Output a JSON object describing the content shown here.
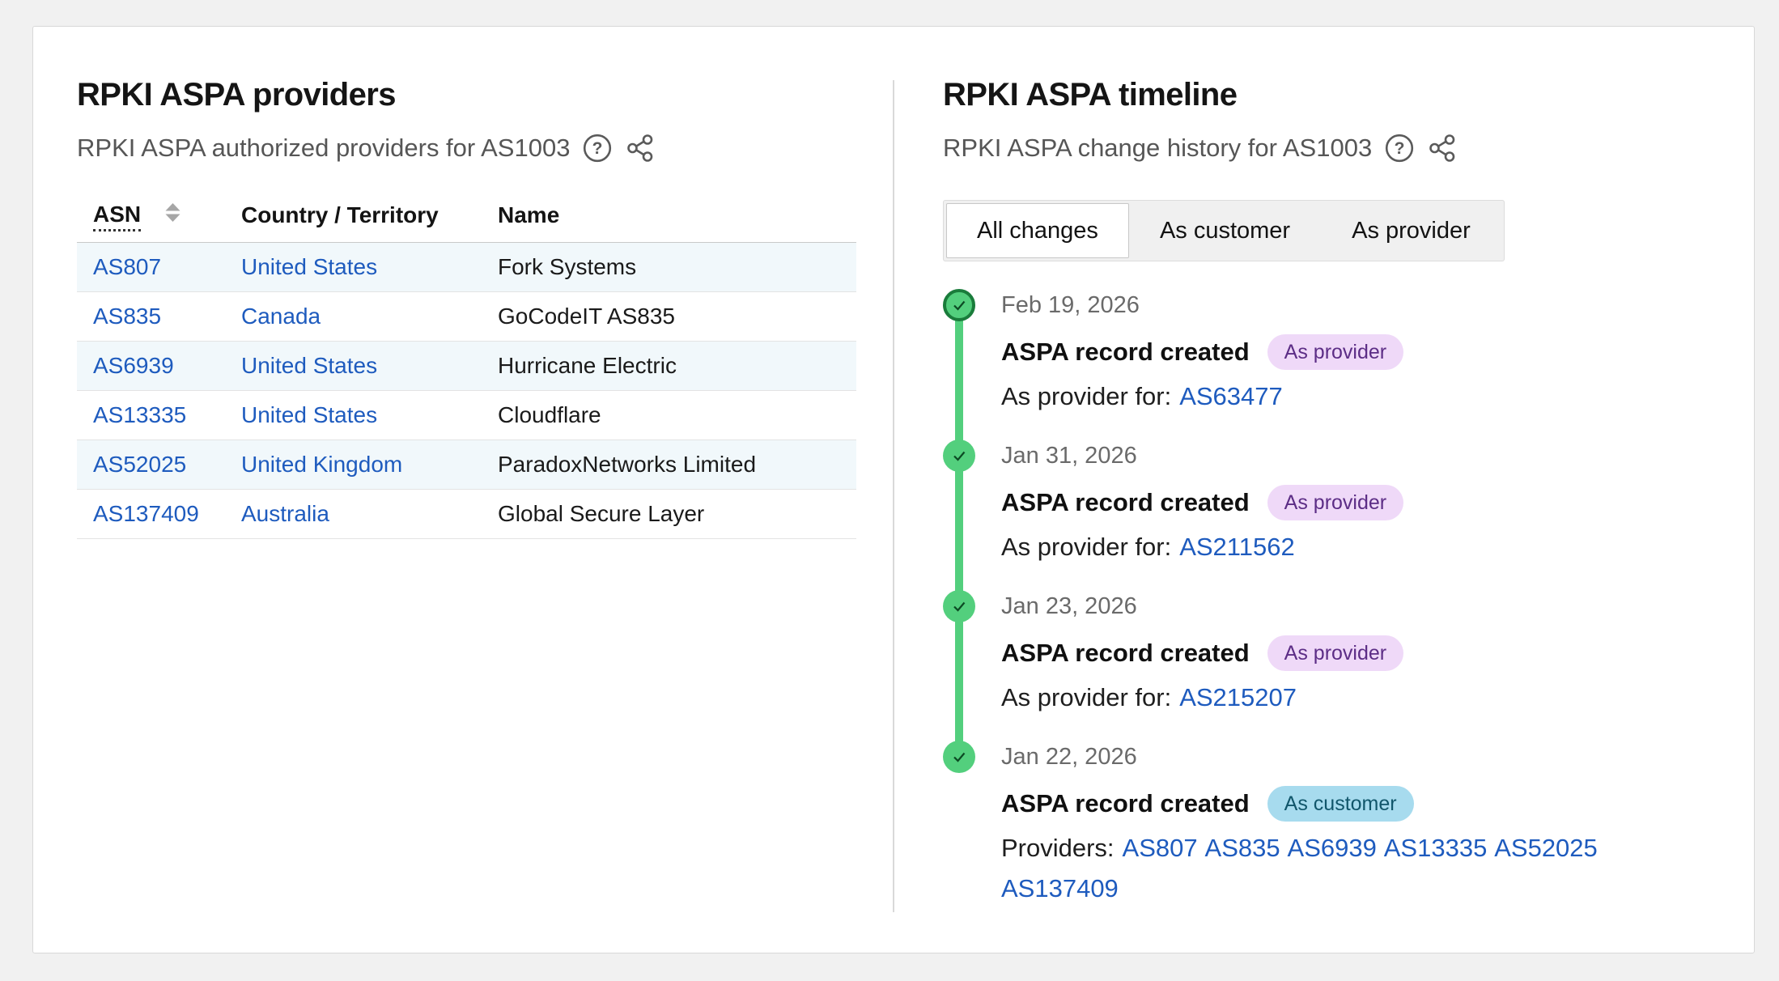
{
  "providers_panel": {
    "title": "RPKI ASPA providers",
    "subtitle": "RPKI ASPA authorized providers for AS1003",
    "table": {
      "columns": [
        "ASN",
        "Country / Territory",
        "Name"
      ],
      "rows": [
        {
          "asn": "AS807",
          "country": "United States",
          "name": "Fork Systems"
        },
        {
          "asn": "AS835",
          "country": "Canada",
          "name": "GoCodeIT AS835"
        },
        {
          "asn": "AS6939",
          "country": "United States",
          "name": "Hurricane Electric"
        },
        {
          "asn": "AS13335",
          "country": "United States",
          "name": "Cloudflare"
        },
        {
          "asn": "AS52025",
          "country": "United Kingdom",
          "name": "ParadoxNetworks Limited"
        },
        {
          "asn": "AS137409",
          "country": "Australia",
          "name": "Global Secure Layer"
        }
      ]
    }
  },
  "timeline_panel": {
    "title": "RPKI ASPA timeline",
    "subtitle": "RPKI ASPA change history for AS1003",
    "tabs": [
      {
        "label": "All changes",
        "active": true
      },
      {
        "label": "As customer",
        "active": false
      },
      {
        "label": "As provider",
        "active": false
      }
    ],
    "events": [
      {
        "date": "Feb 19, 2026",
        "title": "ASPA record created",
        "badge": "As provider",
        "badge_type": "provider",
        "detail_label": "As provider for:",
        "links": [
          "AS63477"
        ]
      },
      {
        "date": "Jan 31, 2026",
        "title": "ASPA record created",
        "badge": "As provider",
        "badge_type": "provider",
        "detail_label": "As provider for:",
        "links": [
          "AS211562"
        ]
      },
      {
        "date": "Jan 23, 2026",
        "title": "ASPA record created",
        "badge": "As provider",
        "badge_type": "provider",
        "detail_label": "As provider for:",
        "links": [
          "AS215207"
        ]
      },
      {
        "date": "Jan 22, 2026",
        "title": "ASPA record created",
        "badge": "As customer",
        "badge_type": "customer",
        "detail_label": "Providers:",
        "links": [
          "AS807",
          "AS835",
          "AS6939",
          "AS13335",
          "AS52025",
          "AS137409"
        ]
      }
    ]
  },
  "icons": {
    "help": "question-circle",
    "share": "share-nodes",
    "sort": "sort-arrows",
    "timeline_dot": "check-circle"
  },
  "colors": {
    "accent_green": "#53cf7d",
    "accent_green_dark": "#1a7c3b",
    "link_blue": "#1e5bbe",
    "row_alt": "#f1f8fb",
    "badge_provider_bg": "#efd9f8",
    "badge_provider_text": "#5c2d86",
    "badge_customer_bg": "#a7dbee",
    "badge_customer_text": "#11566b"
  }
}
